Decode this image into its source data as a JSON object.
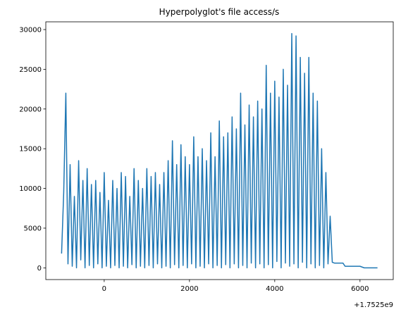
{
  "chart_data": {
    "type": "line",
    "title": "Hyperpolyglot's file access/s",
    "x_offset_label": "+1.7525e9",
    "x": [
      -1000,
      -950,
      -900,
      -850,
      -800,
      -750,
      -700,
      -650,
      -600,
      -550,
      -500,
      -450,
      -400,
      -350,
      -300,
      -250,
      -200,
      -150,
      -100,
      -50,
      0,
      50,
      100,
      150,
      200,
      250,
      300,
      350,
      400,
      450,
      500,
      550,
      600,
      650,
      700,
      750,
      800,
      850,
      900,
      950,
      1000,
      1050,
      1100,
      1150,
      1200,
      1250,
      1300,
      1350,
      1400,
      1450,
      1500,
      1550,
      1600,
      1650,
      1700,
      1750,
      1800,
      1850,
      1900,
      1950,
      2000,
      2050,
      2100,
      2150,
      2200,
      2250,
      2300,
      2350,
      2400,
      2450,
      2500,
      2550,
      2600,
      2650,
      2700,
      2750,
      2800,
      2850,
      2900,
      2950,
      3000,
      3050,
      3100,
      3150,
      3200,
      3250,
      3300,
      3350,
      3400,
      3450,
      3500,
      3550,
      3600,
      3650,
      3700,
      3750,
      3800,
      3850,
      3900,
      3950,
      4000,
      4050,
      4100,
      4150,
      4200,
      4250,
      4300,
      4350,
      4400,
      4450,
      4500,
      4550,
      4600,
      4650,
      4700,
      4750,
      4800,
      4850,
      4900,
      4950,
      5000,
      5050,
      5100,
      5150,
      5200,
      5250,
      5300,
      5350,
      5400,
      5600,
      5650,
      6000,
      6100,
      6410
    ],
    "values": [
      1800,
      9500,
      22000,
      500,
      13000,
      200,
      9000,
      0,
      13500,
      1000,
      11000,
      0,
      12500,
      300,
      10500,
      0,
      11000,
      500,
      9500,
      0,
      12000,
      200,
      8500,
      0,
      11000,
      300,
      10000,
      0,
      12000,
      200,
      11500,
      0,
      9000,
      400,
      12500,
      0,
      11000,
      200,
      10000,
      0,
      12500,
      300,
      11500,
      0,
      12000,
      500,
      10500,
      0,
      12000,
      200,
      13500,
      0,
      16000,
      400,
      13000,
      0,
      15500,
      300,
      14000,
      0,
      13000,
      500,
      16500,
      0,
      14000,
      200,
      15000,
      0,
      13500,
      500,
      17000,
      0,
      14000,
      300,
      18500,
      0,
      16500,
      400,
      17000,
      0,
      19000,
      500,
      17500,
      0,
      22000,
      300,
      18000,
      0,
      20500,
      600,
      19000,
      0,
      21000,
      500,
      20000,
      0,
      25500,
      400,
      22000,
      0,
      23500,
      800,
      21500,
      0,
      25000,
      600,
      23000,
      200,
      29500,
      500,
      29200,
      0,
      26500,
      700,
      24500,
      0,
      26500,
      500,
      22000,
      0,
      21000,
      300,
      15000,
      0,
      12000,
      500,
      6500,
      700,
      600,
      600,
      200,
      200,
      0,
      0
    ],
    "color": "#1f77b4",
    "xlim": [
      -1370,
      6780
    ],
    "xticks": [
      0,
      2000,
      4000,
      6000
    ],
    "ylim": [
      -1475,
      30975
    ],
    "yticks": [
      0,
      5000,
      10000,
      15000,
      20000,
      25000,
      30000
    ]
  }
}
